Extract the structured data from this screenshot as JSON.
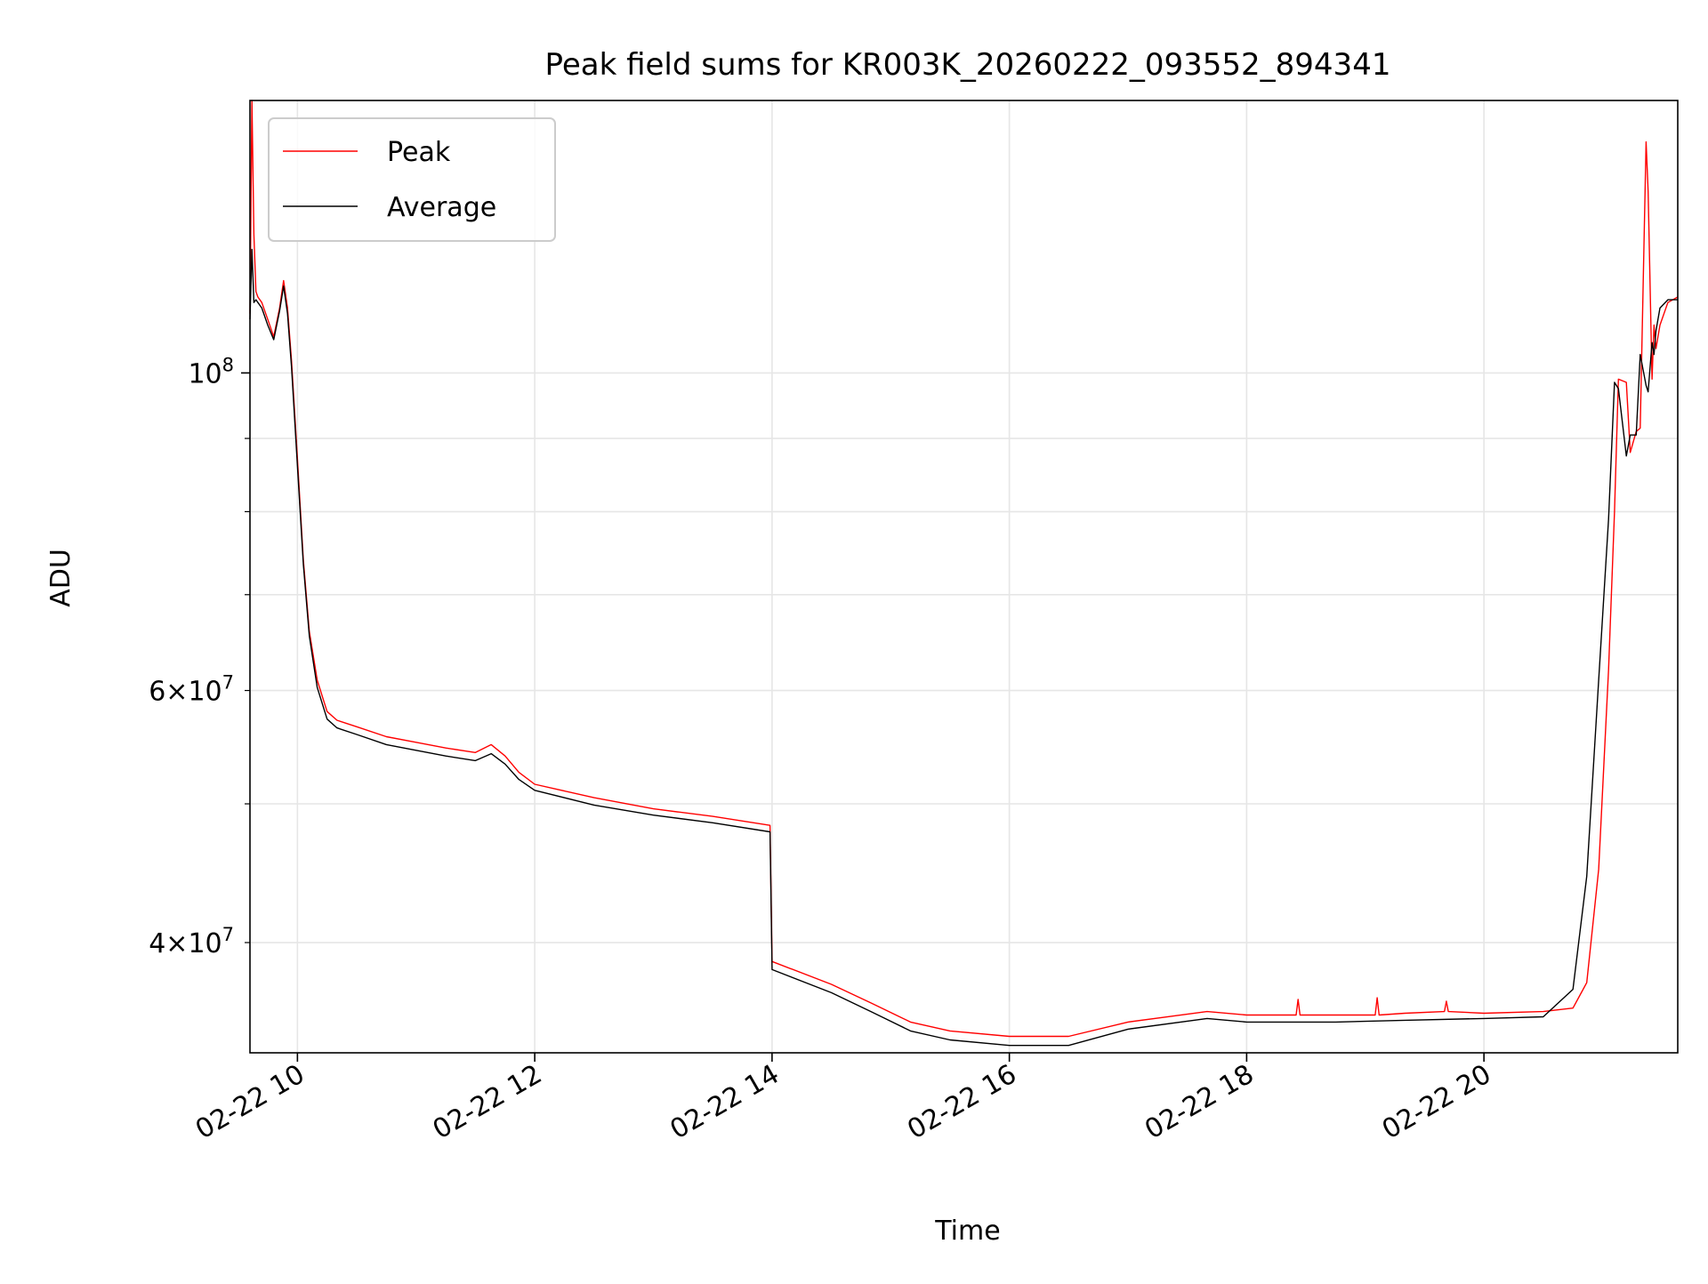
{
  "chart_data": {
    "type": "line",
    "title": "Peak field sums for KR003K_20260222_093552_894341",
    "xlabel": "Time",
    "ylabel": "ADU",
    "yscale": "log",
    "xlim": [
      "2026-02-22 09:36",
      "2026-02-22 21:38"
    ],
    "ylim": [
      33500000,
      155000000
    ],
    "grid": true,
    "legend_location": "upper left",
    "x_ticks": [
      {
        "value": "2026-02-22 10:00",
        "label": "02-22 10"
      },
      {
        "value": "2026-02-22 12:00",
        "label": "02-22 12"
      },
      {
        "value": "2026-02-22 14:00",
        "label": "02-22 14"
      },
      {
        "value": "2026-02-22 16:00",
        "label": "02-22 16"
      },
      {
        "value": "2026-02-22 18:00",
        "label": "02-22 18"
      },
      {
        "value": "2026-02-22 20:00",
        "label": "02-22 20"
      }
    ],
    "y_major_ticks": [
      {
        "value": 100000000,
        "base": "10",
        "exp": "8"
      }
    ],
    "y_minor_ticks": [
      {
        "value": 40000000,
        "base": "4×10",
        "exp": "7"
      },
      {
        "value": 50000000,
        "base": "",
        "exp": ""
      },
      {
        "value": 60000000,
        "base": "6×10",
        "exp": "7"
      },
      {
        "value": 70000000,
        "base": "",
        "exp": ""
      },
      {
        "value": 80000000,
        "base": "",
        "exp": ""
      },
      {
        "value": 90000000,
        "base": "",
        "exp": ""
      }
    ],
    "series": [
      {
        "name": "Peak",
        "color": "#ff0000",
        "x": [
          "2026-02-22 09:36",
          "2026-02-22 09:37",
          "2026-02-22 09:38",
          "2026-02-22 09:39",
          "2026-02-22 09:40",
          "2026-02-22 09:42",
          "2026-02-22 09:45",
          "2026-02-22 09:48",
          "2026-02-22 09:51",
          "2026-02-22 09:53",
          "2026-02-22 09:55",
          "2026-02-22 09:57",
          "2026-02-22 10:00",
          "2026-02-22 10:03",
          "2026-02-22 10:06",
          "2026-02-22 10:10",
          "2026-02-22 10:15",
          "2026-02-22 10:20",
          "2026-02-22 10:30",
          "2026-02-22 10:45",
          "2026-02-22 11:00",
          "2026-02-22 11:15",
          "2026-02-22 11:30",
          "2026-02-22 11:38",
          "2026-02-22 11:45",
          "2026-02-22 11:52",
          "2026-02-22 12:00",
          "2026-02-22 12:30",
          "2026-02-22 13:00",
          "2026-02-22 13:30",
          "2026-02-22 13:59",
          "2026-02-22 14:00",
          "2026-02-22 14:30",
          "2026-02-22 14:50",
          "2026-02-22 15:10",
          "2026-02-22 15:30",
          "2026-02-22 16:00",
          "2026-02-22 16:30",
          "2026-02-22 17:00",
          "2026-02-22 17:40",
          "2026-02-22 18:00",
          "2026-02-22 18:25",
          "2026-02-22 18:26",
          "2026-02-22 18:27",
          "2026-02-22 18:45",
          "2026-02-22 19:05",
          "2026-02-22 19:06",
          "2026-02-22 19:07",
          "2026-02-22 19:20",
          "2026-02-22 19:40",
          "2026-02-22 19:41",
          "2026-02-22 19:42",
          "2026-02-22 20:00",
          "2026-02-22 20:30",
          "2026-02-22 20:45",
          "2026-02-22 20:52",
          "2026-02-22 20:58",
          "2026-02-22 21:03",
          "2026-02-22 21:06",
          "2026-02-22 21:08",
          "2026-02-22 21:12",
          "2026-02-22 21:14",
          "2026-02-22 21:17",
          "2026-02-22 21:19",
          "2026-02-22 21:22",
          "2026-02-22 21:23",
          "2026-02-22 21:25",
          "2026-02-22 21:26",
          "2026-02-22 21:27",
          "2026-02-22 21:29",
          "2026-02-22 21:33",
          "2026-02-22 21:38"
        ],
        "y": [
          110000000,
          155000000,
          125000000,
          114000000,
          113000000,
          112000000,
          109000000,
          106000000,
          111000000,
          116000000,
          111000000,
          102000000,
          87000000,
          74000000,
          66000000,
          61000000,
          58000000,
          57200000,
          56600000,
          55700000,
          55200000,
          54700000,
          54300000,
          55000000,
          54000000,
          52600000,
          51600000,
          50500000,
          49600000,
          49000000,
          48300000,
          38800000,
          37400000,
          36300000,
          35200000,
          34700000,
          34400000,
          34400000,
          35200000,
          35800000,
          35600000,
          35600000,
          36500000,
          35600000,
          35600000,
          35600000,
          36600000,
          35600000,
          35700000,
          35800000,
          36400000,
          35800000,
          35700000,
          35800000,
          36000000,
          37500000,
          45000000,
          62000000,
          80000000,
          99000000,
          98500000,
          88000000,
          91000000,
          91500000,
          145000000,
          134000000,
          99000000,
          108000000,
          104000000,
          108000000,
          112000000,
          113000000
        ]
      },
      {
        "name": "Average",
        "color": "#000000",
        "x": [
          "2026-02-22 09:36",
          "2026-02-22 09:37",
          "2026-02-22 09:38",
          "2026-02-22 09:39",
          "2026-02-22 09:40",
          "2026-02-22 09:42",
          "2026-02-22 09:45",
          "2026-02-22 09:48",
          "2026-02-22 09:51",
          "2026-02-22 09:53",
          "2026-02-22 09:55",
          "2026-02-22 09:57",
          "2026-02-22 10:00",
          "2026-02-22 10:03",
          "2026-02-22 10:06",
          "2026-02-22 10:10",
          "2026-02-22 10:15",
          "2026-02-22 10:20",
          "2026-02-22 10:30",
          "2026-02-22 10:45",
          "2026-02-22 11:00",
          "2026-02-22 11:15",
          "2026-02-22 11:30",
          "2026-02-22 11:38",
          "2026-02-22 11:45",
          "2026-02-22 11:52",
          "2026-02-22 12:00",
          "2026-02-22 12:30",
          "2026-02-22 13:00",
          "2026-02-22 13:30",
          "2026-02-22 13:59",
          "2026-02-22 14:00",
          "2026-02-22 14:30",
          "2026-02-22 14:50",
          "2026-02-22 15:10",
          "2026-02-22 15:30",
          "2026-02-22 16:00",
          "2026-02-22 16:30",
          "2026-02-22 17:00",
          "2026-02-22 17:40",
          "2026-02-22 18:00",
          "2026-02-22 18:45",
          "2026-02-22 19:20",
          "2026-02-22 20:00",
          "2026-02-22 20:30",
          "2026-02-22 20:45",
          "2026-02-22 20:52",
          "2026-02-22 20:58",
          "2026-02-22 21:03",
          "2026-02-22 21:06",
          "2026-02-22 21:08",
          "2026-02-22 21:12",
          "2026-02-22 21:14",
          "2026-02-22 21:17",
          "2026-02-22 21:19",
          "2026-02-22 21:22",
          "2026-02-22 21:23",
          "2026-02-22 21:25",
          "2026-02-22 21:26",
          "2026-02-22 21:27",
          "2026-02-22 21:29",
          "2026-02-22 21:33",
          "2026-02-22 21:38"
        ],
        "y": [
          109000000,
          122000000,
          112000000,
          112500000,
          112000000,
          111000000,
          108000000,
          105500000,
          110500000,
          115000000,
          110000000,
          101000000,
          86000000,
          73500000,
          65500000,
          60300000,
          57300000,
          56500000,
          55900000,
          55000000,
          54500000,
          54000000,
          53600000,
          54200000,
          53300000,
          52000000,
          51100000,
          49900000,
          49100000,
          48500000,
          47800000,
          38300000,
          36900000,
          35800000,
          34700000,
          34200000,
          33900000,
          33900000,
          34800000,
          35400000,
          35200000,
          35200000,
          35300000,
          35400000,
          35500000,
          37100000,
          44500000,
          61000000,
          79000000,
          98500000,
          97500000,
          87500000,
          90500000,
          90500000,
          103000000,
          98000000,
          97000000,
          105000000,
          103000000,
          107000000,
          111000000,
          112500000,
          112500000
        ]
      }
    ]
  }
}
